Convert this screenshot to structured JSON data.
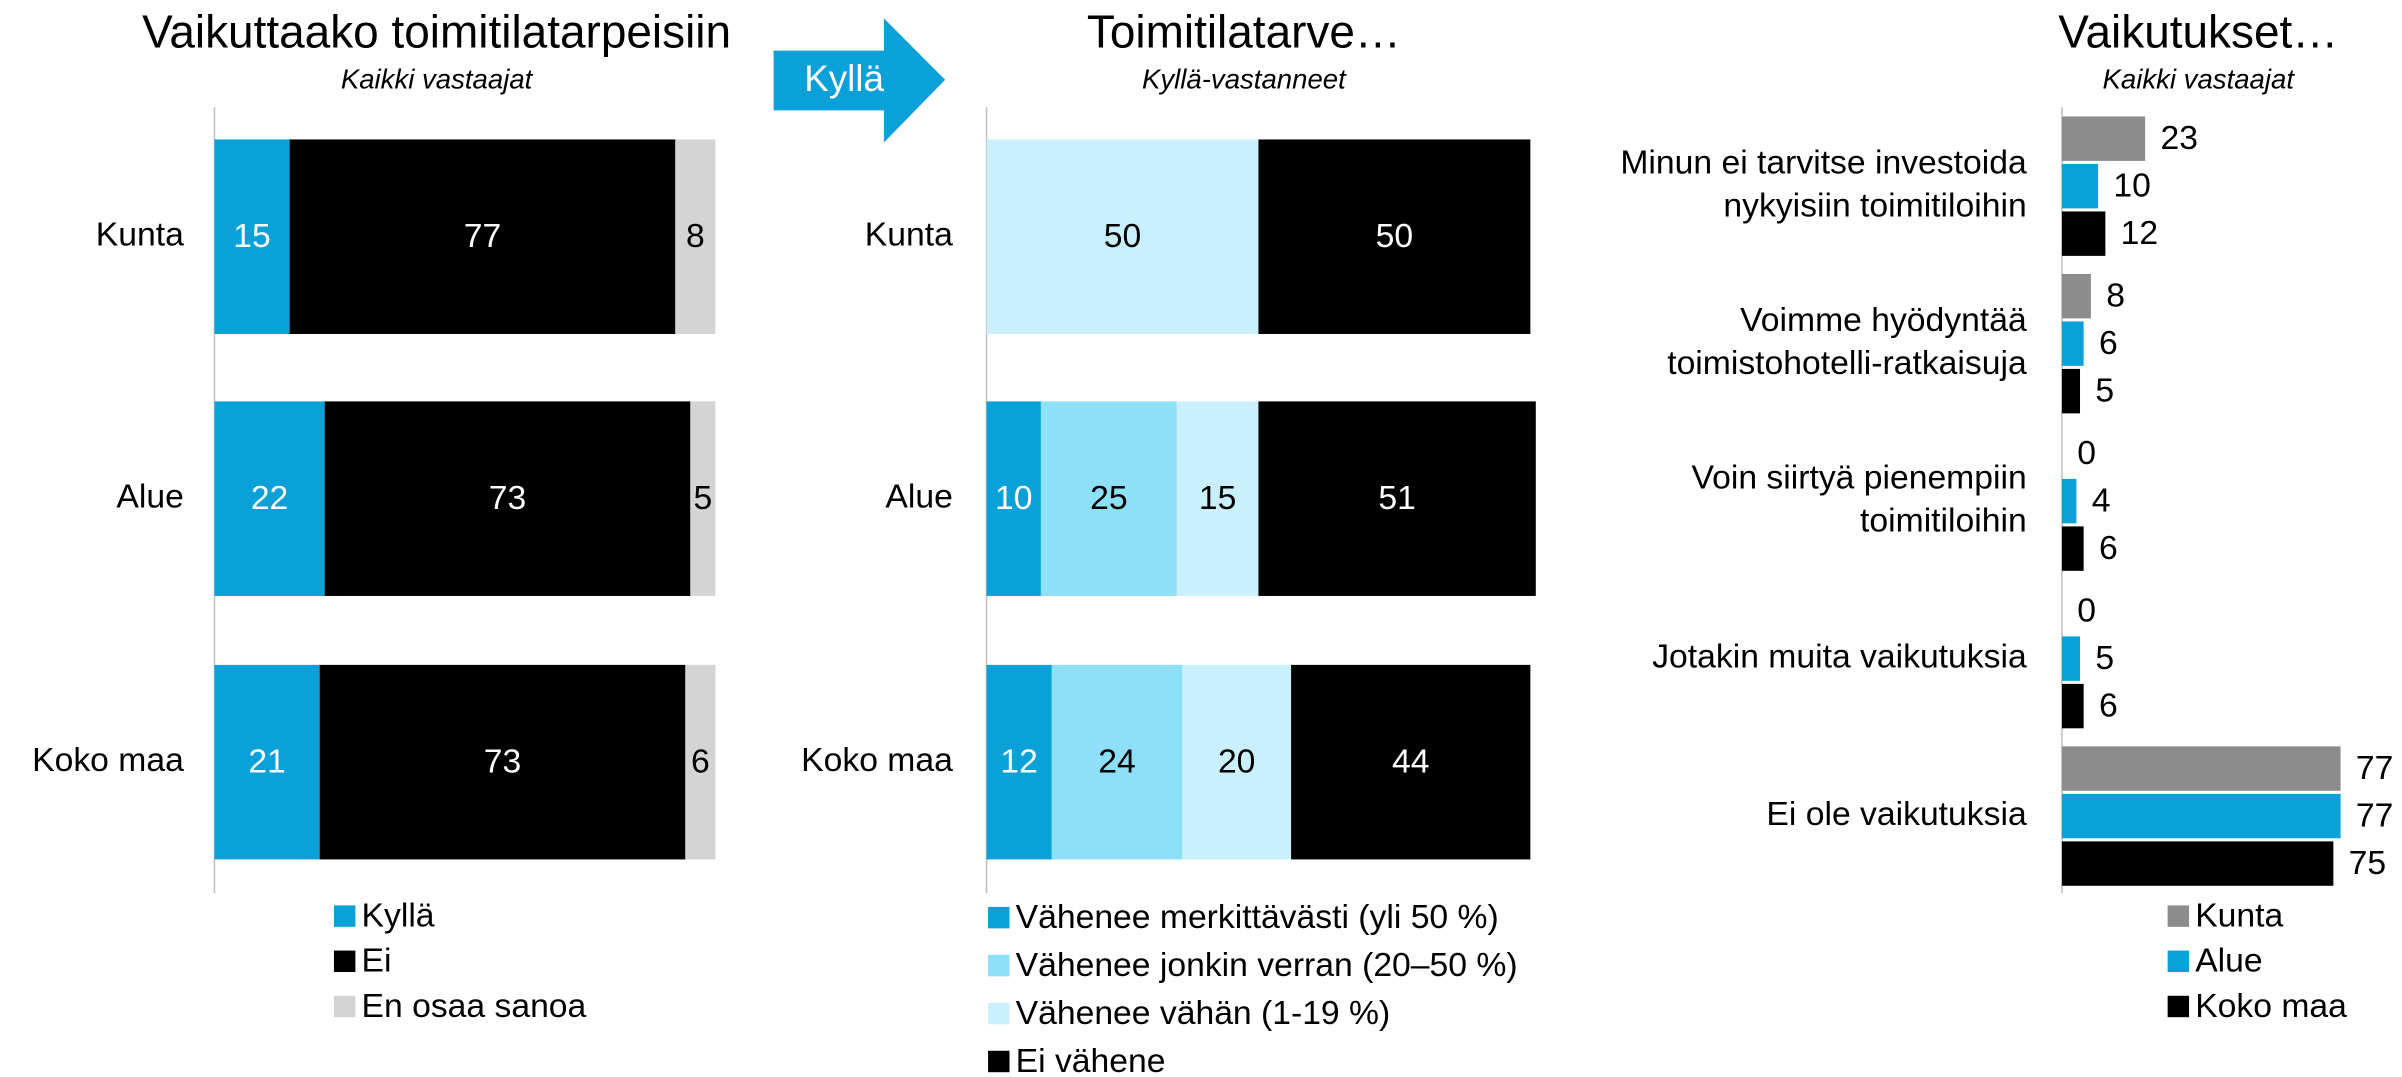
{
  "chart_data": [
    {
      "type": "stacked-bar",
      "title": "Vaikuttaako toimitilatarpeisiin",
      "subtitle": "Kaikki vastaajat",
      "categories": [
        "Kunta",
        "Alue",
        "Koko maa"
      ],
      "xlim": [
        0,
        100
      ],
      "series": [
        {
          "name": "Kyllä",
          "color": "#0aa0d8",
          "values": [
            15,
            22,
            21
          ]
        },
        {
          "name": "Ei",
          "color": "#000000",
          "values": [
            77,
            73,
            73
          ]
        },
        {
          "name": "En osaa sanoa",
          "color": "#d4d4d4",
          "values": [
            8,
            5,
            6
          ]
        }
      ]
    },
    {
      "type": "stacked-bar",
      "title": "Toimitilatarve…",
      "subtitle": "Kyllä-vastanneet",
      "annotation": "Kyllä",
      "categories": [
        "Kunta",
        "Alue",
        "Koko maa"
      ],
      "xlim": [
        0,
        100
      ],
      "series": [
        {
          "name": "Vähenee merkittävästi (yli 50 %)",
          "color": "#0aa0d8",
          "values": [
            null,
            10,
            12
          ]
        },
        {
          "name": "Vähenee jonkin verran (20–50 %)",
          "color": "#8ee0f9",
          "values": [
            null,
            25,
            24
          ]
        },
        {
          "name": "Vähenee vähän (1-19 %)",
          "color": "#c9f0fc",
          "values": [
            50,
            15,
            20
          ]
        },
        {
          "name": "Ei vähene",
          "color": "#000000",
          "values": [
            50,
            51,
            44
          ]
        }
      ]
    },
    {
      "type": "grouped-bar",
      "title": "Vaikutukset…",
      "subtitle": "Kaikki vastaajat",
      "categories": [
        "Minun ei tarvitse investoida nykyisiin toimitiloihin",
        "Voimme hyödyntää toimistohotelli-ratkaisuja",
        "Voin siirtyä pienempiin toimitiloihin",
        "Jotakin muita vaikutuksia",
        "Ei ole vaikutuksia"
      ],
      "xlim": [
        0,
        80
      ],
      "series": [
        {
          "name": "Kunta",
          "color": "#8c8c8c",
          "values": [
            23,
            8,
            0,
            0,
            77
          ]
        },
        {
          "name": "Alue",
          "color": "#0aa0d8",
          "values": [
            10,
            6,
            4,
            5,
            77
          ]
        },
        {
          "name": "Koko maa",
          "color": "#000000",
          "values": [
            12,
            5,
            6,
            6,
            75
          ]
        }
      ]
    }
  ]
}
